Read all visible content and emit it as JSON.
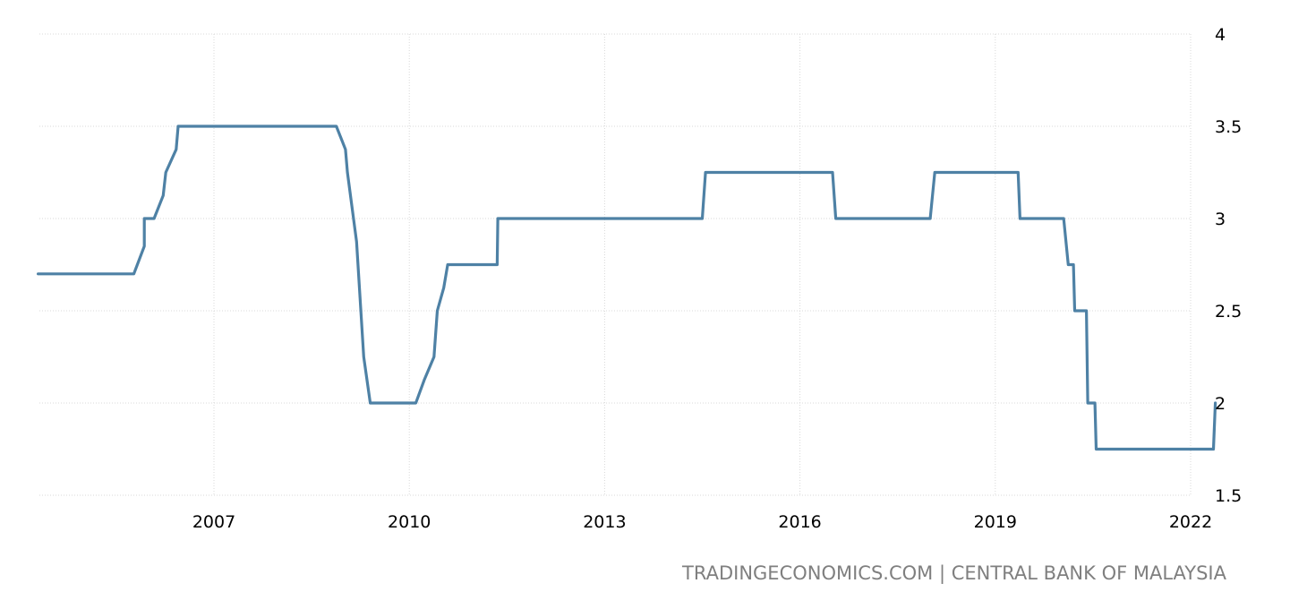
{
  "source": "TRADINGECONOMICS.COM | CENTRAL BANK OF MALAYSIA",
  "colors": {
    "line": "#4e81a5",
    "grid": "#d9d9d9",
    "source_text": "#7f7f7f"
  },
  "chart_data": {
    "type": "line",
    "title": "",
    "xlabel": "",
    "ylabel": "",
    "xlim": [
      2004.3,
      2022.4
    ],
    "ylim": [
      1.5,
      4
    ],
    "xticks": [
      2007,
      2010,
      2013,
      2016,
      2019,
      2022
    ],
    "xtick_labels": [
      "2007",
      "2010",
      "2013",
      "2016",
      "2019",
      "2022"
    ],
    "yticks": [
      1.5,
      2,
      2.5,
      3,
      3.5,
      4
    ],
    "ytick_labels": [
      "1.5",
      "2",
      "2.5",
      "3",
      "3.5",
      "4"
    ],
    "grid": true,
    "y_axis_position": "right",
    "series": [
      {
        "name": "",
        "x": [
          2004.3,
          2005.77,
          2005.93,
          2005.93,
          2006.08,
          2006.22,
          2006.26,
          2006.42,
          2006.45,
          2008.88,
          2009.02,
          2009.05,
          2009.19,
          2009.3,
          2009.4,
          2010.1,
          2010.23,
          2010.38,
          2010.43,
          2010.53,
          2010.59,
          2011.35,
          2011.36,
          2014.5,
          2014.55,
          2016.5,
          2016.55,
          2018.0,
          2018.07,
          2019.35,
          2019.38,
          2020.05,
          2020.12,
          2020.2,
          2020.22,
          2020.4,
          2020.42,
          2020.53,
          2020.55,
          2022.35,
          2022.38
        ],
        "values": [
          2.7,
          2.7,
          2.85,
          3.0,
          3.0,
          3.125,
          3.25,
          3.375,
          3.5,
          3.5,
          3.375,
          3.25,
          2.875,
          2.25,
          2.0,
          2.0,
          2.125,
          2.25,
          2.5,
          2.625,
          2.75,
          2.75,
          3.0,
          3.0,
          3.25,
          3.25,
          3.0,
          3.0,
          3.25,
          3.25,
          3.0,
          3.0,
          2.75,
          2.75,
          2.5,
          2.5,
          2.0,
          2.0,
          1.75,
          1.75,
          2.0
        ]
      }
    ]
  }
}
